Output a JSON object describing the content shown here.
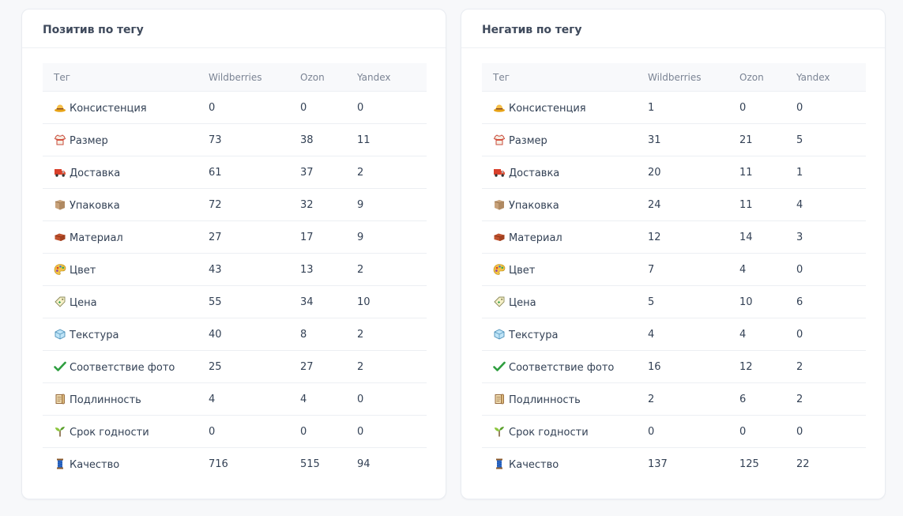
{
  "positive": {
    "title": "Позитив по тегу",
    "columns": [
      "Тег",
      "Wildberries",
      "Ozon",
      "Yandex"
    ],
    "rows": [
      {
        "icon": "hat-icon",
        "tag": "Консистенция",
        "wb": "0",
        "ozon": "0",
        "yandex": "0"
      },
      {
        "icon": "shirt-icon",
        "tag": "Размер",
        "wb": "73",
        "ozon": "38",
        "yandex": "11"
      },
      {
        "icon": "truck-icon",
        "tag": "Доставка",
        "wb": "61",
        "ozon": "37",
        "yandex": "2"
      },
      {
        "icon": "box-icon",
        "tag": "Упаковка",
        "wb": "72",
        "ozon": "32",
        "yandex": "9"
      },
      {
        "icon": "brick-icon",
        "tag": "Материал",
        "wb": "27",
        "ozon": "17",
        "yandex": "9"
      },
      {
        "icon": "palette-icon",
        "tag": "Цвет",
        "wb": "43",
        "ozon": "13",
        "yandex": "2"
      },
      {
        "icon": "price-tag-icon",
        "tag": "Цена",
        "wb": "55",
        "ozon": "34",
        "yandex": "10"
      },
      {
        "icon": "ice-cube-icon",
        "tag": "Текстура",
        "wb": "40",
        "ozon": "8",
        "yandex": "2"
      },
      {
        "icon": "check-mark-icon",
        "tag": "Соответствие фото",
        "wb": "25",
        "ozon": "27",
        "yandex": "2"
      },
      {
        "icon": "scroll-icon",
        "tag": "Подлинность",
        "wb": "4",
        "ozon": "4",
        "yandex": "0"
      },
      {
        "icon": "sprout-icon",
        "tag": "Срок годности",
        "wb": "0",
        "ozon": "0",
        "yandex": "0"
      },
      {
        "icon": "thread-spool-icon",
        "tag": "Качество",
        "wb": "716",
        "ozon": "515",
        "yandex": "94"
      }
    ]
  },
  "negative": {
    "title": "Негатив по тегу",
    "columns": [
      "Тег",
      "Wildberries",
      "Ozon",
      "Yandex"
    ],
    "rows": [
      {
        "icon": "hat-icon",
        "tag": "Консистенция",
        "wb": "1",
        "ozon": "0",
        "yandex": "0"
      },
      {
        "icon": "shirt-icon",
        "tag": "Размер",
        "wb": "31",
        "ozon": "21",
        "yandex": "5"
      },
      {
        "icon": "truck-icon",
        "tag": "Доставка",
        "wb": "20",
        "ozon": "11",
        "yandex": "1"
      },
      {
        "icon": "box-icon",
        "tag": "Упаковка",
        "wb": "24",
        "ozon": "11",
        "yandex": "4"
      },
      {
        "icon": "brick-icon",
        "tag": "Материал",
        "wb": "12",
        "ozon": "14",
        "yandex": "3"
      },
      {
        "icon": "palette-icon",
        "tag": "Цвет",
        "wb": "7",
        "ozon": "4",
        "yandex": "0"
      },
      {
        "icon": "price-tag-icon",
        "tag": "Цена",
        "wb": "5",
        "ozon": "10",
        "yandex": "6"
      },
      {
        "icon": "ice-cube-icon",
        "tag": "Текстура",
        "wb": "4",
        "ozon": "4",
        "yandex": "0"
      },
      {
        "icon": "check-mark-icon",
        "tag": "Соответствие фото",
        "wb": "16",
        "ozon": "12",
        "yandex": "2"
      },
      {
        "icon": "scroll-icon",
        "tag": "Подлинность",
        "wb": "2",
        "ozon": "6",
        "yandex": "2"
      },
      {
        "icon": "sprout-icon",
        "tag": "Срок годности",
        "wb": "0",
        "ozon": "0",
        "yandex": "0"
      },
      {
        "icon": "thread-spool-icon",
        "tag": "Качество",
        "wb": "137",
        "ozon": "125",
        "yandex": "22"
      }
    ]
  }
}
